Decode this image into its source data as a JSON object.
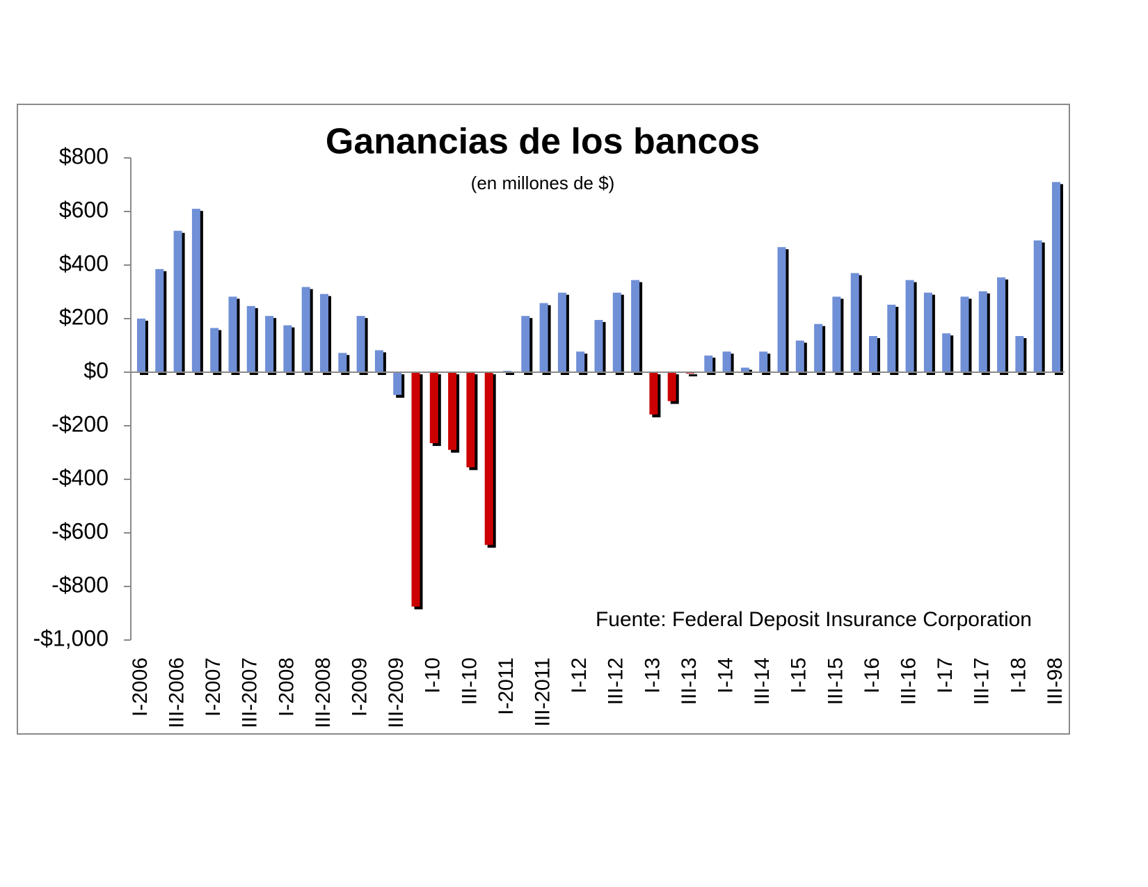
{
  "chart_data": {
    "type": "bar",
    "title": "Ganancias de los bancos",
    "subtitle": "(en millones de $)",
    "annotation": "Fuente: Federal Deposit Insurance Corporation",
    "categories": [
      "I-2006",
      null,
      "III-2006",
      null,
      "I-2007",
      null,
      "III-2007",
      null,
      "I-2008",
      null,
      "III-2008",
      null,
      "I-2009",
      null,
      "III-2009",
      null,
      "I-10",
      null,
      "III-10",
      null,
      "I-2011",
      null,
      "III-2011",
      null,
      "I-12",
      null,
      "III-12",
      null,
      "I-13",
      null,
      "III-13",
      null,
      "I-14",
      null,
      "III-14",
      null,
      "I-15",
      null,
      "III-15",
      null,
      "I-16",
      null,
      "III-16",
      null,
      "I-17",
      null,
      "III-17",
      null,
      "I-18",
      null,
      "III-98"
    ],
    "values": [
      200,
      385,
      528,
      610,
      165,
      282,
      247,
      210,
      175,
      318,
      292,
      72,
      210,
      82,
      -85,
      -875,
      -265,
      -290,
      -355,
      -645,
      5,
      210,
      258,
      297,
      77,
      195,
      297,
      344,
      -158,
      -108,
      -5,
      62,
      77,
      17,
      77,
      467,
      118,
      180,
      282,
      370,
      135,
      252,
      344,
      297,
      145,
      282,
      302,
      354,
      135,
      492,
      710
    ],
    "colors": [
      "#6f8fd6",
      "#6f8fd6",
      "#6f8fd6",
      "#6f8fd6",
      "#6f8fd6",
      "#6f8fd6",
      "#6f8fd6",
      "#6f8fd6",
      "#6f8fd6",
      "#6f8fd6",
      "#6f8fd6",
      "#6f8fd6",
      "#6f8fd6",
      "#6f8fd6",
      "#6f8fd6",
      "#cc0000",
      "#cc0000",
      "#cc0000",
      "#cc0000",
      "#cc0000",
      "#6f8fd6",
      "#6f8fd6",
      "#6f8fd6",
      "#6f8fd6",
      "#6f8fd6",
      "#6f8fd6",
      "#6f8fd6",
      "#6f8fd6",
      "#cc0000",
      "#cc0000",
      "#cc0000",
      "#6f8fd6",
      "#6f8fd6",
      "#6f8fd6",
      "#6f8fd6",
      "#6f8fd6",
      "#6f8fd6",
      "#6f8fd6",
      "#6f8fd6",
      "#6f8fd6",
      "#6f8fd6",
      "#6f8fd6",
      "#6f8fd6",
      "#6f8fd6",
      "#6f8fd6",
      "#6f8fd6",
      "#6f8fd6",
      "#6f8fd6",
      "#6f8fd6",
      "#6f8fd6",
      "#6f8fd6"
    ],
    "ylim": [
      -1000,
      800
    ],
    "yticks": [
      {
        "value": -1000,
        "label": "-$1,000"
      },
      {
        "value": -800,
        "label": "-$800"
      },
      {
        "value": -600,
        "label": "-$600"
      },
      {
        "value": -400,
        "label": "-$400"
      },
      {
        "value": -200,
        "label": "-$200"
      },
      {
        "value": 0,
        "label": "$0"
      },
      {
        "value": 200,
        "label": "$200"
      },
      {
        "value": 400,
        "label": "$400"
      },
      {
        "value": 600,
        "label": "$600"
      },
      {
        "value": 800,
        "label": "$800"
      }
    ],
    "grid": false
  }
}
